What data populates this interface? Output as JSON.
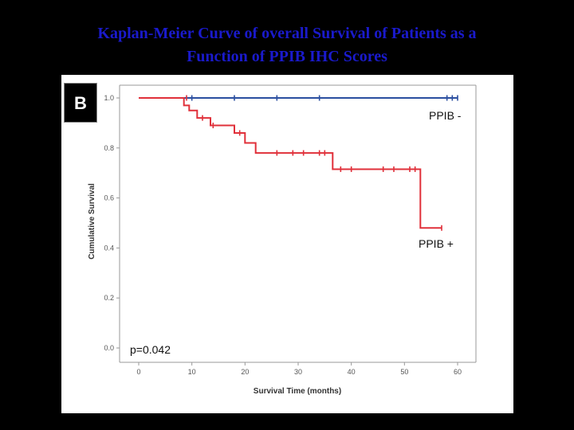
{
  "slide": {
    "title_line1": "Kaplan-Meier Curve of overall Survival of Patients as a",
    "title_line2": "Function of PPIB IHC Scores",
    "panel_label": "B"
  },
  "colors": {
    "title": "#1a1acc",
    "ppib_negative": "#2b4fa0",
    "ppib_positive": "#e0303a"
  },
  "chart_data": {
    "type": "line",
    "subtype": "kaplan-meier step curve",
    "xlabel": "Survival Time (months)",
    "ylabel": "Cumulative Survival",
    "xlim": [
      0,
      60
    ],
    "ylim": [
      0.0,
      1.0
    ],
    "x_ticks": [
      "0",
      "10",
      "20",
      "30",
      "40",
      "50",
      "60"
    ],
    "y_ticks": [
      "0.0",
      "0.2",
      "0.4",
      "0.6",
      "0.8",
      "1.0"
    ],
    "grid": false,
    "annotation": "p=0.042",
    "series": [
      {
        "name": "PPIB -",
        "color": "#2b4fa0",
        "steps": [
          [
            0,
            1.0
          ],
          [
            60,
            1.0
          ]
        ],
        "censored": [
          [
            10,
            1.0
          ],
          [
            18,
            1.0
          ],
          [
            26,
            1.0
          ],
          [
            34,
            1.0
          ],
          [
            58,
            1.0
          ],
          [
            59,
            1.0
          ],
          [
            60,
            1.0
          ]
        ]
      },
      {
        "name": "PPIB +",
        "color": "#e0303a",
        "steps": [
          [
            0,
            1.0
          ],
          [
            8.5,
            1.0
          ],
          [
            8.5,
            0.97
          ],
          [
            9.5,
            0.97
          ],
          [
            9.5,
            0.95
          ],
          [
            11,
            0.95
          ],
          [
            11,
            0.92
          ],
          [
            13.5,
            0.92
          ],
          [
            13.5,
            0.89
          ],
          [
            18,
            0.89
          ],
          [
            18,
            0.86
          ],
          [
            20,
            0.86
          ],
          [
            20,
            0.82
          ],
          [
            22,
            0.82
          ],
          [
            22,
            0.78
          ],
          [
            36.5,
            0.78
          ],
          [
            36.5,
            0.715
          ],
          [
            53,
            0.715
          ],
          [
            53,
            0.48
          ],
          [
            57,
            0.48
          ]
        ],
        "censored": [
          [
            9,
            1.0
          ],
          [
            12,
            0.92
          ],
          [
            14,
            0.89
          ],
          [
            19,
            0.86
          ],
          [
            26,
            0.78
          ],
          [
            29,
            0.78
          ],
          [
            31,
            0.78
          ],
          [
            34,
            0.78
          ],
          [
            35,
            0.78
          ],
          [
            38,
            0.715
          ],
          [
            40,
            0.715
          ],
          [
            46,
            0.715
          ],
          [
            48,
            0.715
          ],
          [
            51,
            0.715
          ],
          [
            52,
            0.715
          ],
          [
            57,
            0.48
          ]
        ]
      }
    ]
  }
}
